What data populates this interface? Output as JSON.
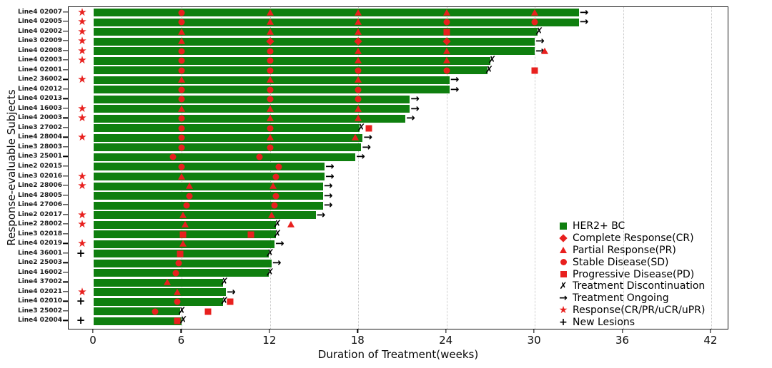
{
  "chart_data": {
    "type": "bar",
    "subtype": "swimmer-plot",
    "title": "",
    "xlabel": "Duration of Treatment(weeks)",
    "ylabel": "Response-evaluable Subjects",
    "x_ticks": [
      0,
      6,
      12,
      18,
      24,
      30,
      36,
      42
    ],
    "xlim": [
      -1.7,
      43.2
    ],
    "grid": "vertical-dotted",
    "legend_position": "lower-right",
    "colors": {
      "bar_green": "#0f7f0f",
      "marker_red": "#e8201e",
      "axis_black": "#1a1a1a"
    },
    "response_shape_map": {
      "CR": "diamond",
      "PR": "triangle",
      "SD": "circle",
      "PD": "square"
    },
    "legend": [
      {
        "marker": "her2-square",
        "label": "HER2+ BC"
      },
      {
        "marker": "cr-diamond",
        "label": "Complete Response(CR)"
      },
      {
        "marker": "pr-triangle",
        "label": "Partial Response(PR)"
      },
      {
        "marker": "sd-circle",
        "label": "Stable Disease(SD)"
      },
      {
        "marker": "pd-square",
        "label": "Progressive Disease(PD)"
      },
      {
        "marker": "discontinuation-x",
        "label": "Treatment Discontinuation"
      },
      {
        "marker": "ongoing-arrow",
        "label": "Treatment Ongoing"
      },
      {
        "marker": "response-star",
        "label": "Response(CR/PR/uCR/uPR)"
      },
      {
        "marker": "new-lesions-plus",
        "label": "New Lesions"
      }
    ],
    "subjects": [
      {
        "label": "Line4 02007",
        "flag": "star",
        "duration": 33.0,
        "status": "ongoing",
        "assessments": [
          {
            "week": 6,
            "response": "SD"
          },
          {
            "week": 12,
            "response": "PR"
          },
          {
            "week": 18,
            "response": "PR"
          },
          {
            "week": 24,
            "response": "PR"
          },
          {
            "week": 30,
            "response": "PR"
          }
        ],
        "post_markers": []
      },
      {
        "label": "Line4 02005",
        "flag": "star",
        "duration": 33.0,
        "status": "ongoing",
        "assessments": [
          {
            "week": 6,
            "response": "SD"
          },
          {
            "week": 12,
            "response": "PR"
          },
          {
            "week": 18,
            "response": "PR"
          },
          {
            "week": 24,
            "response": "SD"
          },
          {
            "week": 30,
            "response": "SD"
          }
        ],
        "post_markers": []
      },
      {
        "label": "Line4 02002",
        "flag": "star",
        "duration": 30.2,
        "status": "discontinued",
        "assessments": [
          {
            "week": 6,
            "response": "PR"
          },
          {
            "week": 12,
            "response": "PR"
          },
          {
            "week": 18,
            "response": "PR"
          },
          {
            "week": 24,
            "response": "PD"
          }
        ],
        "post_markers": []
      },
      {
        "label": "Line3 02009",
        "flag": "star",
        "duration": 30.0,
        "status": "ongoing",
        "assessments": [
          {
            "week": 6,
            "response": "PR"
          },
          {
            "week": 12,
            "response": "CR"
          },
          {
            "week": 18,
            "response": "CR"
          },
          {
            "week": 24,
            "response": "CR"
          }
        ],
        "post_markers": []
      },
      {
        "label": "Line4 02008",
        "flag": "star",
        "duration": 30.0,
        "status": "ongoing",
        "assessments": [
          {
            "week": 6,
            "response": "SD"
          },
          {
            "week": 12,
            "response": "SD"
          },
          {
            "week": 18,
            "response": "PR"
          },
          {
            "week": 24,
            "response": "PR"
          }
        ],
        "post_markers": [
          {
            "week": 30.7,
            "response": "PR"
          }
        ]
      },
      {
        "label": "Line4 02003",
        "flag": "star",
        "duration": 27.0,
        "status": "discontinued",
        "assessments": [
          {
            "week": 6,
            "response": "SD"
          },
          {
            "week": 12,
            "response": "SD"
          },
          {
            "week": 18,
            "response": "PR"
          },
          {
            "week": 24,
            "response": "PR"
          }
        ],
        "post_markers": []
      },
      {
        "label": "Line4 02001",
        "flag": null,
        "duration": 26.8,
        "status": "discontinued",
        "assessments": [
          {
            "week": 6,
            "response": "SD"
          },
          {
            "week": 12,
            "response": "SD"
          },
          {
            "week": 18,
            "response": "SD"
          },
          {
            "week": 24,
            "response": "SD"
          }
        ],
        "post_markers": [
          {
            "week": 30.0,
            "response": "PD"
          }
        ]
      },
      {
        "label": "Line2 36002",
        "flag": "star",
        "duration": 24.2,
        "status": "ongoing",
        "assessments": [
          {
            "week": 6,
            "response": "PR"
          },
          {
            "week": 12,
            "response": "PR"
          },
          {
            "week": 18,
            "response": "PR"
          }
        ],
        "post_markers": []
      },
      {
        "label": "Line4 02012",
        "flag": null,
        "duration": 24.2,
        "status": "ongoing",
        "assessments": [
          {
            "week": 6,
            "response": "SD"
          },
          {
            "week": 12,
            "response": "SD"
          },
          {
            "week": 18,
            "response": "SD"
          }
        ],
        "post_markers": []
      },
      {
        "label": "Line4 02013",
        "flag": null,
        "duration": 21.5,
        "status": "ongoing",
        "assessments": [
          {
            "week": 6,
            "response": "SD"
          },
          {
            "week": 12,
            "response": "SD"
          },
          {
            "week": 18,
            "response": "SD"
          }
        ],
        "post_markers": []
      },
      {
        "label": "Line4 16003",
        "flag": "star",
        "duration": 21.5,
        "status": "ongoing",
        "assessments": [
          {
            "week": 6,
            "response": "PR"
          },
          {
            "week": 12,
            "response": "PR"
          },
          {
            "week": 18,
            "response": "PR"
          }
        ],
        "post_markers": []
      },
      {
        "label": "Line4 20003",
        "flag": "star",
        "duration": 21.2,
        "status": "ongoing",
        "assessments": [
          {
            "week": 6,
            "response": "SD"
          },
          {
            "week": 12,
            "response": "PR"
          },
          {
            "week": 18,
            "response": "PR"
          }
        ],
        "post_markers": []
      },
      {
        "label": "Line3 27002",
        "flag": null,
        "duration": 18.1,
        "status": "discontinued",
        "assessments": [
          {
            "week": 6,
            "response": "SD"
          },
          {
            "week": 12,
            "response": "SD"
          }
        ],
        "post_markers": [
          {
            "week": 18.7,
            "response": "PD"
          }
        ]
      },
      {
        "label": "Line4 28004",
        "flag": "star",
        "duration": 18.3,
        "status": "ongoing",
        "assessments": [
          {
            "week": 6,
            "response": "SD"
          },
          {
            "week": 12,
            "response": "PR"
          },
          {
            "week": 17.8,
            "response": "PR"
          }
        ],
        "post_markers": []
      },
      {
        "label": "Line3 28003",
        "flag": null,
        "duration": 18.2,
        "status": "ongoing",
        "assessments": [
          {
            "week": 6,
            "response": "SD"
          },
          {
            "week": 12,
            "response": "SD"
          }
        ],
        "post_markers": []
      },
      {
        "label": "Line3 25001",
        "flag": null,
        "duration": 17.8,
        "status": "ongoing",
        "assessments": [
          {
            "week": 5.4,
            "response": "SD"
          },
          {
            "week": 11.3,
            "response": "SD"
          }
        ],
        "post_markers": []
      },
      {
        "label": "Line2 02015",
        "flag": null,
        "duration": 15.7,
        "status": "ongoing",
        "assessments": [
          {
            "week": 6,
            "response": "SD"
          },
          {
            "week": 12.6,
            "response": "SD"
          }
        ],
        "post_markers": []
      },
      {
        "label": "Line3 02016",
        "flag": "star",
        "duration": 15.7,
        "status": "ongoing",
        "assessments": [
          {
            "week": 6,
            "response": "PR"
          },
          {
            "week": 12.4,
            "response": "SD"
          }
        ],
        "post_markers": []
      },
      {
        "label": "Line2 28006",
        "flag": "star",
        "duration": 15.6,
        "status": "ongoing",
        "assessments": [
          {
            "week": 6.5,
            "response": "PR"
          },
          {
            "week": 12.2,
            "response": "PR"
          }
        ],
        "post_markers": []
      },
      {
        "label": "Line4 28005",
        "flag": null,
        "duration": 15.6,
        "status": "ongoing",
        "assessments": [
          {
            "week": 6.5,
            "response": "SD"
          },
          {
            "week": 12.4,
            "response": "SD"
          }
        ],
        "post_markers": []
      },
      {
        "label": "Line4 27006",
        "flag": null,
        "duration": 15.6,
        "status": "ongoing",
        "assessments": [
          {
            "week": 6.3,
            "response": "SD"
          },
          {
            "week": 12.3,
            "response": "SD"
          }
        ],
        "post_markers": []
      },
      {
        "label": "Line2 02017",
        "flag": "star",
        "duration": 15.1,
        "status": "ongoing",
        "assessments": [
          {
            "week": 6.1,
            "response": "PR"
          },
          {
            "week": 12.1,
            "response": "PR"
          }
        ],
        "post_markers": []
      },
      {
        "label": "Line2 28002",
        "flag": "star",
        "duration": 12.4,
        "status": "discontinued",
        "assessments": [
          {
            "week": 6.2,
            "response": "PR"
          }
        ],
        "post_markers": [
          {
            "week": 13.4,
            "response": "PR"
          }
        ]
      },
      {
        "label": "Line3 02018",
        "flag": null,
        "duration": 12.4,
        "status": "discontinued",
        "assessments": [
          {
            "week": 6.1,
            "response": "PD"
          },
          {
            "week": 10.7,
            "response": "PD"
          }
        ],
        "post_markers": []
      },
      {
        "label": "Line4 02019",
        "flag": "star",
        "duration": 12.3,
        "status": "ongoing",
        "assessments": [
          {
            "week": 6.1,
            "response": "PR"
          }
        ],
        "post_markers": []
      },
      {
        "label": "Line4 36001",
        "flag": "plus",
        "duration": 11.9,
        "status": "discontinued",
        "assessments": [
          {
            "week": 5.9,
            "response": "PD"
          }
        ],
        "post_markers": []
      },
      {
        "label": "Line2 25003",
        "flag": null,
        "duration": 12.1,
        "status": "ongoing",
        "assessments": [
          {
            "week": 5.8,
            "response": "SD"
          }
        ],
        "post_markers": []
      },
      {
        "label": "Line4 16002",
        "flag": null,
        "duration": 11.9,
        "status": "discontinued",
        "assessments": [
          {
            "week": 5.6,
            "response": "SD"
          }
        ],
        "post_markers": []
      },
      {
        "label": "Line4 37002",
        "flag": null,
        "duration": 8.8,
        "status": "discontinued",
        "assessments": [
          {
            "week": 5.0,
            "response": "PR"
          }
        ],
        "post_markers": []
      },
      {
        "label": "Line4 02021",
        "flag": "star",
        "duration": 9.0,
        "status": "ongoing",
        "assessments": [
          {
            "week": 5.7,
            "response": "PR"
          }
        ],
        "post_markers": []
      },
      {
        "label": "Line4 02010",
        "flag": "plus",
        "duration": 8.8,
        "status": "discontinued",
        "assessments": [
          {
            "week": 5.7,
            "response": "SD"
          }
        ],
        "post_markers": [
          {
            "week": 9.3,
            "response": "PD"
          }
        ]
      },
      {
        "label": "Line3 25002",
        "flag": null,
        "duration": 5.9,
        "status": "discontinued",
        "assessments": [
          {
            "week": 4.2,
            "response": "SD"
          }
        ],
        "post_markers": [
          {
            "week": 7.8,
            "response": "PD"
          }
        ]
      },
      {
        "label": "Line4 02004",
        "flag": "plus",
        "duration": 6.0,
        "status": "discontinued",
        "assessments": [
          {
            "week": 5.7,
            "response": "PD"
          }
        ],
        "post_markers": []
      }
    ]
  }
}
